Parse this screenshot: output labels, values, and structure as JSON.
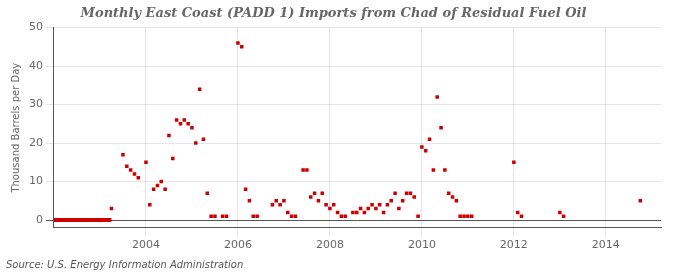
{
  "chart_data": {
    "type": "scatter",
    "title": "Monthly East Coast (PADD 1) Imports from Chad of Residual Fuel Oil",
    "ylabel": "Thousand Barrels per Day",
    "annotations": [
      "Source: U.S. Energy Information Administration"
    ],
    "series": [
      {
        "type": "scatter",
        "marker": "square",
        "color": "#cc0000",
        "x": [
          2003.25,
          2003.5,
          2003.583,
          2003.667,
          2003.75,
          2003.833,
          2004.0,
          2004.083,
          2004.167,
          2004.25,
          2004.333,
          2004.417,
          2004.5,
          2004.583,
          2004.667,
          2004.75,
          2004.833,
          2004.917,
          2005.0,
          2005.083,
          2005.167,
          2005.25,
          2005.333,
          2005.417,
          2005.5,
          2005.667,
          2005.75,
          2006.0,
          2006.083,
          2006.167,
          2006.25,
          2006.333,
          2006.417,
          2006.75,
          2006.833,
          2006.917,
          2007.0,
          2007.083,
          2007.167,
          2007.25,
          2007.417,
          2007.5,
          2007.583,
          2007.667,
          2007.75,
          2007.833,
          2007.917,
          2008.0,
          2008.083,
          2008.167,
          2008.25,
          2008.333,
          2008.5,
          2008.583,
          2008.667,
          2008.75,
          2008.833,
          2008.917,
          2009.0,
          2009.083,
          2009.167,
          2009.25,
          2009.333,
          2009.417,
          2009.5,
          2009.583,
          2009.667,
          2009.75,
          2009.833,
          2009.917,
          2010.0,
          2010.083,
          2010.167,
          2010.25,
          2010.333,
          2010.417,
          2010.5,
          2010.583,
          2010.667,
          2010.75,
          2010.833,
          2010.917,
          2011.0,
          2011.083,
          2012.0,
          2012.083,
          2012.167,
          2013.0,
          2013.083,
          2014.75
        ],
        "values": [
          3,
          17,
          14,
          13,
          12,
          11,
          15,
          4,
          8,
          9,
          10,
          8,
          22,
          16,
          26,
          25,
          26,
          25,
          24,
          20,
          34,
          21,
          7,
          1,
          1,
          1,
          1,
          46,
          45,
          8,
          5,
          1,
          1,
          4,
          5,
          4,
          5,
          2,
          1,
          1,
          13,
          13,
          6,
          7,
          5,
          7,
          4,
          3,
          4,
          2,
          1,
          1,
          2,
          2,
          3,
          2,
          3,
          4,
          3,
          4,
          2,
          4,
          5,
          7,
          3,
          5,
          7,
          7,
          6,
          1,
          19,
          18,
          21,
          13,
          32,
          24,
          13,
          7,
          6,
          5,
          1,
          1,
          1,
          1,
          15,
          2,
          1,
          2,
          1,
          5
        ]
      },
      {
        "type": "line",
        "line_style": "solid",
        "color": "#cc0000",
        "x": [
          2002.0,
          2003.25
        ],
        "values": [
          0,
          0
        ]
      }
    ],
    "xlim": [
      2002.0,
      2015.2
    ],
    "xticks": [
      2004,
      2006,
      2008,
      2010,
      2012,
      2014
    ],
    "ylim": [
      -2,
      50
    ],
    "yticks": [
      0,
      10,
      20,
      30,
      40,
      50
    ],
    "grid": true
  }
}
